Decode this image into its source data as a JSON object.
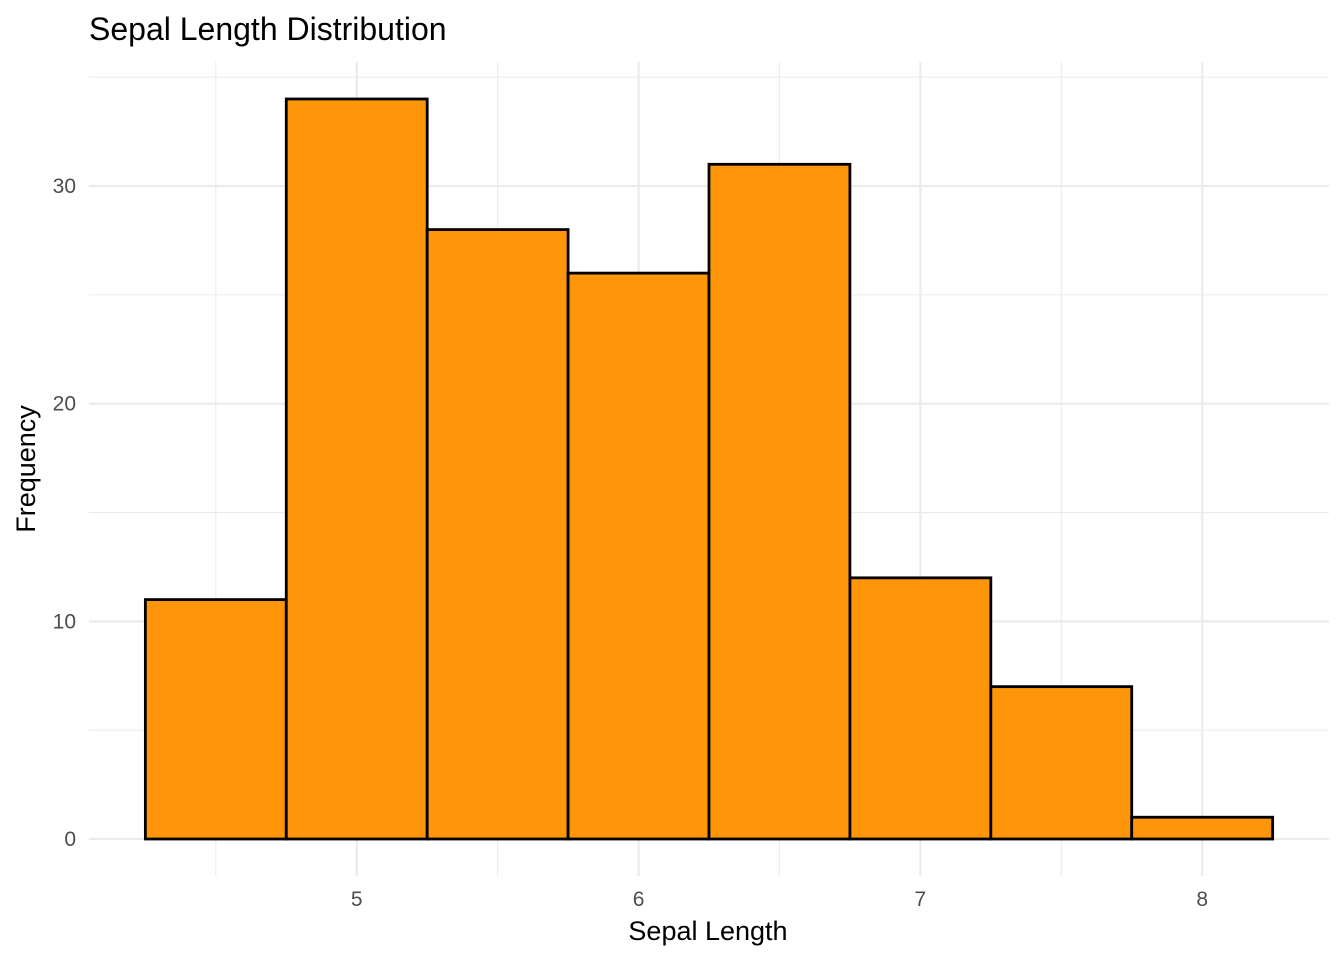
{
  "chart_data": {
    "type": "bar",
    "title": "Sepal Length Distribution",
    "xlabel": "Sepal Length",
    "ylabel": "Frequency",
    "bin_width": 0.5,
    "bins": [
      {
        "x_start": 4.25,
        "x_end": 4.75,
        "value": 11
      },
      {
        "x_start": 4.75,
        "x_end": 5.25,
        "value": 34
      },
      {
        "x_start": 5.25,
        "x_end": 5.75,
        "value": 28
      },
      {
        "x_start": 5.75,
        "x_end": 6.25,
        "value": 26
      },
      {
        "x_start": 6.25,
        "x_end": 6.75,
        "value": 31
      },
      {
        "x_start": 6.75,
        "x_end": 7.25,
        "value": 12
      },
      {
        "x_start": 7.25,
        "x_end": 7.75,
        "value": 7
      },
      {
        "x_start": 7.75,
        "x_end": 8.25,
        "value": 1
      }
    ],
    "x_ticks": [
      "5",
      "6",
      "7",
      "8"
    ],
    "y_ticks": [
      "0",
      "10",
      "20",
      "30"
    ],
    "xlim": [
      4.05,
      8.45
    ],
    "ylim": [
      -1.7,
      35.7
    ],
    "grid": true,
    "legend": "none",
    "bar_color": "#FF9509",
    "bar_outline_color": "#000000"
  }
}
